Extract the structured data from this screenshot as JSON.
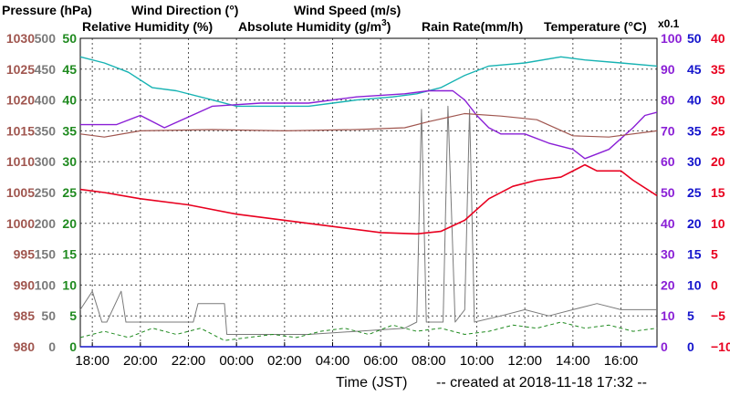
{
  "colors": {
    "pressure": "#a0564f",
    "wind_direction": "#7a7a7a",
    "wind_speed": "#1f8a1f",
    "relative_humidity": "#8a1fd6",
    "absolute_humidity": "#17b3b3",
    "rain_rate": "#1414cc",
    "temperature": "#e8001f"
  },
  "chart_data": {
    "type": "line",
    "legend": {
      "pressure": "Pressure (hPa)",
      "wind_direction": "Wind Direction (°)",
      "wind_speed": "Wind Speed (m/s)",
      "relative_humidity": "Relative Humidity (%)",
      "absolute_humidity_main": "Absolute Humidity (g/m",
      "absolute_humidity_sup": "3",
      "absolute_humidity_close": ")",
      "absolute_humidity_scale": "x0.1",
      "rain_rate": "Rain Rate(mm/h)",
      "temperature": "Temperature  (°C)"
    },
    "xlabel": "Time (JST)",
    "footer": "-- created at 2018-11-18 17:32 --",
    "x_ticks": [
      "18:00",
      "20:00",
      "22:00",
      "00:00",
      "02:00",
      "04:00",
      "06:00",
      "08:00",
      "10:00",
      "12:00",
      "14:00",
      "16:00"
    ],
    "x_range_hours": [
      -0.5,
      23.5
    ],
    "grid": true,
    "axes": {
      "pressure": {
        "min": 980,
        "max": 1030,
        "ticks": [
          "1030",
          "1025",
          "1020",
          "1015",
          "1010",
          "1005",
          "1000",
          "995",
          "990",
          "985",
          "980"
        ]
      },
      "wind_direction": {
        "min": 0,
        "max": 500,
        "ticks": [
          "500",
          "450",
          "400",
          "350",
          "300",
          "250",
          "200",
          "150",
          "100",
          "50",
          "0"
        ]
      },
      "wind_speed": {
        "min": 0,
        "max": 50,
        "ticks": [
          "50",
          "45",
          "40",
          "35",
          "30",
          "25",
          "20",
          "15",
          "10",
          "5",
          "0"
        ]
      },
      "relative_humidity": {
        "min": 0,
        "max": 100,
        "ticks": [
          "100",
          "90",
          "80",
          "70",
          "60",
          "50",
          "40",
          "30",
          "20",
          "10",
          "0"
        ]
      },
      "rain_rate": {
        "min": 0,
        "max": 50,
        "ticks": [
          "50",
          "45",
          "40",
          "35",
          "30",
          "25",
          "20",
          "15",
          "10",
          "5",
          "0"
        ]
      },
      "temperature": {
        "min": -10,
        "max": 40,
        "ticks": [
          "40",
          "35",
          "30",
          "25",
          "20",
          "15",
          "10",
          "5",
          "0",
          "−5",
          "−10"
        ]
      }
    },
    "series": [
      {
        "name": "Pressure (hPa)",
        "key": "pressure",
        "axis": "pressure",
        "points": [
          [
            -0.5,
            1014.5
          ],
          [
            0.5,
            1014.0
          ],
          [
            2,
            1015.0
          ],
          [
            5,
            1015.2
          ],
          [
            8,
            1015.0
          ],
          [
            11,
            1015.2
          ],
          [
            13,
            1015.5
          ],
          [
            14,
            1016.5
          ],
          [
            15.5,
            1017.8
          ],
          [
            17,
            1017.4
          ],
          [
            18.5,
            1016.8
          ],
          [
            20,
            1014.2
          ],
          [
            21.5,
            1014.0
          ],
          [
            23.5,
            1015.0
          ]
        ]
      },
      {
        "name": "Relative Humidity (%)",
        "key": "relative_humidity",
        "axis": "relative_humidity",
        "points": [
          [
            -0.5,
            72
          ],
          [
            1,
            72
          ],
          [
            2,
            75
          ],
          [
            3,
            71
          ],
          [
            5,
            78
          ],
          [
            7,
            79
          ],
          [
            9,
            79
          ],
          [
            10,
            80
          ],
          [
            11,
            81
          ],
          [
            13,
            82
          ],
          [
            14,
            83
          ],
          [
            15,
            83
          ],
          [
            15.5,
            80
          ],
          [
            16,
            75
          ],
          [
            16.5,
            71
          ],
          [
            17,
            69
          ],
          [
            18,
            69
          ],
          [
            19,
            66
          ],
          [
            20,
            64
          ],
          [
            20.5,
            61
          ],
          [
            21.5,
            64
          ],
          [
            22.5,
            71
          ],
          [
            23,
            75
          ],
          [
            23.5,
            76
          ]
        ]
      },
      {
        "name": "Absolute Humidity x0.1",
        "key": "absolute_humidity",
        "axis": "relative_humidity",
        "points": [
          [
            -0.5,
            94
          ],
          [
            0.5,
            92
          ],
          [
            1.5,
            89
          ],
          [
            2.5,
            84
          ],
          [
            3.5,
            83
          ],
          [
            5,
            80
          ],
          [
            6,
            78
          ],
          [
            7.5,
            78
          ],
          [
            9,
            78
          ],
          [
            10,
            79
          ],
          [
            11,
            80
          ],
          [
            12.5,
            81
          ],
          [
            13.5,
            82
          ],
          [
            14.5,
            84
          ],
          [
            15.5,
            88
          ],
          [
            16.5,
            91
          ],
          [
            18,
            92
          ],
          [
            19.5,
            94
          ],
          [
            20.5,
            93
          ],
          [
            22,
            92
          ],
          [
            23.5,
            91
          ]
        ]
      },
      {
        "name": "Temperature (°C)",
        "key": "temperature",
        "axis": "temperature",
        "points": [
          [
            -0.5,
            15.5
          ],
          [
            0.5,
            15.0
          ],
          [
            2,
            14.0
          ],
          [
            4,
            13.0
          ],
          [
            6,
            11.5
          ],
          [
            8,
            10.5
          ],
          [
            10,
            9.5
          ],
          [
            12,
            8.5
          ],
          [
            13.5,
            8.3
          ],
          [
            14.5,
            8.7
          ],
          [
            15.5,
            10.5
          ],
          [
            16.5,
            14.0
          ],
          [
            17.5,
            16.0
          ],
          [
            18.5,
            17.0
          ],
          [
            19.5,
            17.5
          ],
          [
            20.5,
            19.5
          ],
          [
            21,
            18.5
          ],
          [
            22,
            18.5
          ],
          [
            22.5,
            17.0
          ],
          [
            23.5,
            14.5
          ]
        ]
      },
      {
        "name": "Wind Direction (°)",
        "key": "wind_direction",
        "axis": "wind_direction",
        "points": [
          [
            -0.5,
            60
          ],
          [
            0,
            90
          ],
          [
            0.4,
            40
          ],
          [
            0.6,
            40
          ],
          [
            1.2,
            90
          ],
          [
            1.4,
            40
          ],
          [
            2,
            40
          ],
          [
            3,
            40
          ],
          [
            3.5,
            40
          ],
          [
            4.2,
            40
          ],
          [
            4.4,
            70
          ],
          [
            5.5,
            70
          ],
          [
            5.6,
            20
          ],
          [
            9,
            20
          ],
          [
            11,
            25
          ],
          [
            13,
            30
          ],
          [
            13.5,
            40
          ],
          [
            13.7,
            385
          ],
          [
            13.9,
            40
          ],
          [
            14.6,
            40
          ],
          [
            14.8,
            390
          ],
          [
            15.1,
            40
          ],
          [
            15.5,
            60
          ],
          [
            15.7,
            385
          ],
          [
            15.9,
            40
          ],
          [
            17,
            50
          ],
          [
            18,
            60
          ],
          [
            19,
            50
          ],
          [
            20,
            60
          ],
          [
            21,
            70
          ],
          [
            22,
            60
          ],
          [
            23.5,
            60
          ]
        ]
      },
      {
        "name": "Wind Speed (m/s)",
        "key": "wind_speed",
        "axis": "wind_speed",
        "points": [
          [
            -0.5,
            1.5
          ],
          [
            0.5,
            2.5
          ],
          [
            1.5,
            1.5
          ],
          [
            2.5,
            3.0
          ],
          [
            3.5,
            2.0
          ],
          [
            4.5,
            3.0
          ],
          [
            5.5,
            1.0
          ],
          [
            6.5,
            1.5
          ],
          [
            7.5,
            2.0
          ],
          [
            8.5,
            1.5
          ],
          [
            9.5,
            2.5
          ],
          [
            10.5,
            3.0
          ],
          [
            11.5,
            2.0
          ],
          [
            12.5,
            3.5
          ],
          [
            13.5,
            2.5
          ],
          [
            14.5,
            3.0
          ],
          [
            15.5,
            2.0
          ],
          [
            16.5,
            2.5
          ],
          [
            17.5,
            3.5
          ],
          [
            18.5,
            3.0
          ],
          [
            19.5,
            4.0
          ],
          [
            20.5,
            3.0
          ],
          [
            21.5,
            3.5
          ],
          [
            22.5,
            2.5
          ],
          [
            23.5,
            3.0
          ]
        ]
      },
      {
        "name": "Rain Rate(mm/h)",
        "key": "rain_rate",
        "axis": "rain_rate",
        "points": [
          [
            -0.5,
            0
          ],
          [
            23.5,
            0
          ]
        ]
      }
    ]
  }
}
